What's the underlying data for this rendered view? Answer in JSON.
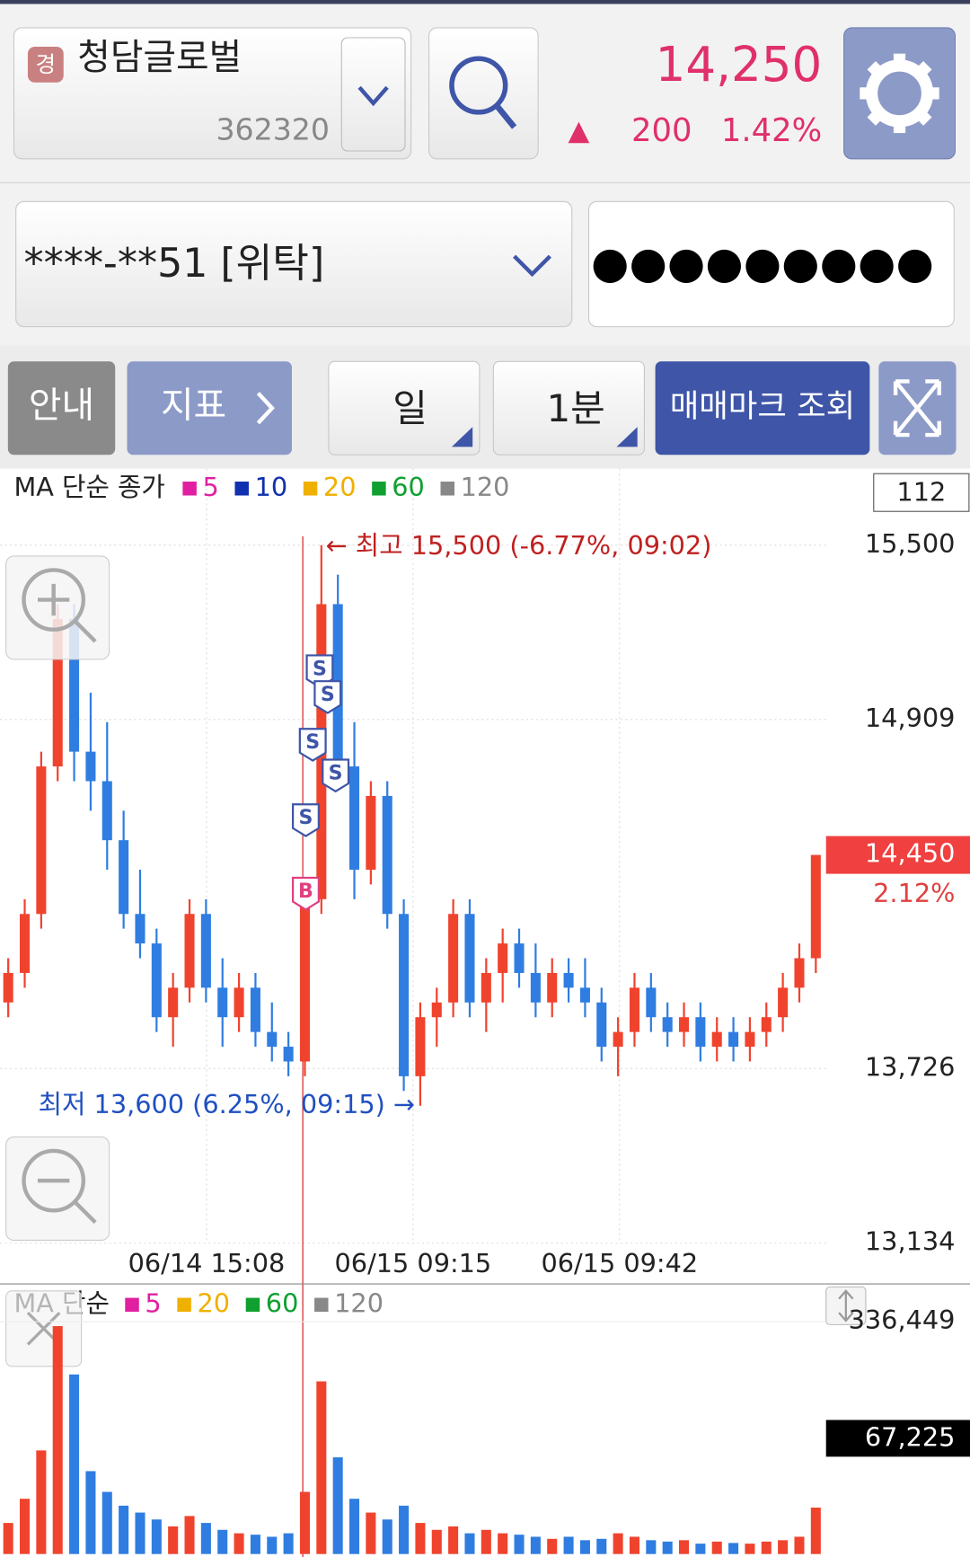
{
  "header": {
    "badge": "경",
    "name": "청담글로벌",
    "code": "362320",
    "price": "14,250",
    "arrow": "▲",
    "change": "200",
    "rate": "1.42%"
  },
  "account": {
    "number": "****-**51 [위탁]",
    "password": "●●●●●●●●●"
  },
  "toolbar": [
    "안내",
    "지표",
    "일",
    "1분",
    "매매마크 조회"
  ],
  "chart": {
    "type": "candlestick",
    "legend_title": "MA 단순 종가",
    "ma": [
      {
        "name": "5",
        "color": "#e020a0"
      },
      {
        "name": "10",
        "color": "#1030b0"
      },
      {
        "name": "20",
        "color": "#f0b000"
      },
      {
        "name": "60",
        "color": "#10a030"
      },
      {
        "name": "120",
        "color": "#888888"
      }
    ],
    "count": "112",
    "ylim": [
      13134,
      15500
    ],
    "yticks": [
      {
        "value": 15500,
        "label": "15,500"
      },
      {
        "value": 14909,
        "label": "14,909"
      },
      {
        "value": 13726,
        "label": "13,726"
      },
      {
        "value": 13134,
        "label": "13,134"
      }
    ],
    "current": {
      "value": 14450,
      "label": "14,450"
    },
    "current_rate": "2.12%",
    "high_note": "← 최고 15,500 (-6.77%, 09:02)",
    "low_note": "최저 13,600 (6.25%, 09:15) →",
    "x_labels": [
      "06/14 15:08",
      "06/15 09:15",
      "06/15 09:42"
    ],
    "trade_marks": [
      "S",
      "S",
      "S",
      "S",
      "S",
      "B"
    ],
    "up_color": "#f0432e",
    "down_color": "#2f7de1",
    "candles": [
      [
        13950,
        14100,
        13900,
        14050
      ],
      [
        14050,
        14300,
        14000,
        14250
      ],
      [
        14250,
        14800,
        14200,
        14750
      ],
      [
        14750,
        15300,
        14700,
        15250
      ],
      [
        15250,
        15300,
        14700,
        14800
      ],
      [
        14800,
        15000,
        14600,
        14700
      ],
      [
        14700,
        14900,
        14400,
        14500
      ],
      [
        14500,
        14600,
        14200,
        14250
      ],
      [
        14250,
        14400,
        14100,
        14150
      ],
      [
        14150,
        14200,
        13850,
        13900
      ],
      [
        13900,
        14050,
        13800,
        14000
      ],
      [
        14000,
        14300,
        13950,
        14250
      ],
      [
        14250,
        14300,
        13950,
        14000
      ],
      [
        14000,
        14100,
        13800,
        13900
      ],
      [
        13900,
        14050,
        13850,
        14000
      ],
      [
        14000,
        14050,
        13800,
        13850
      ],
      [
        13850,
        13950,
        13750,
        13800
      ],
      [
        13800,
        13850,
        13700,
        13750
      ],
      [
        13750,
        14350,
        13700,
        14300
      ],
      [
        14300,
        15500,
        14250,
        15300
      ],
      [
        15300,
        15400,
        14700,
        14750
      ],
      [
        14750,
        14900,
        14300,
        14400
      ],
      [
        14400,
        14700,
        14350,
        14650
      ],
      [
        14650,
        14700,
        14200,
        14250
      ],
      [
        14250,
        14300,
        13650,
        13700
      ],
      [
        13700,
        13950,
        13600,
        13900
      ],
      [
        13900,
        14000,
        13800,
        13950
      ],
      [
        13950,
        14300,
        13900,
        14250
      ],
      [
        14250,
        14300,
        13900,
        13950
      ],
      [
        13950,
        14100,
        13850,
        14050
      ],
      [
        14050,
        14200,
        13950,
        14150
      ],
      [
        14150,
        14200,
        14000,
        14050
      ],
      [
        14050,
        14150,
        13900,
        13950
      ],
      [
        13950,
        14100,
        13900,
        14050
      ],
      [
        14050,
        14100,
        13950,
        14000
      ],
      [
        14000,
        14100,
        13900,
        13950
      ],
      [
        13950,
        14000,
        13750,
        13800
      ],
      [
        13800,
        13900,
        13700,
        13850
      ],
      [
        13850,
        14050,
        13800,
        14000
      ],
      [
        14000,
        14050,
        13850,
        13900
      ],
      [
        13900,
        13950,
        13800,
        13850
      ],
      [
        13850,
        13950,
        13800,
        13900
      ],
      [
        13900,
        13950,
        13750,
        13800
      ],
      [
        13800,
        13900,
        13750,
        13850
      ],
      [
        13850,
        13900,
        13750,
        13800
      ],
      [
        13800,
        13900,
        13750,
        13850
      ],
      [
        13850,
        13950,
        13800,
        13900
      ],
      [
        13900,
        14050,
        13850,
        14000
      ],
      [
        14000,
        14150,
        13950,
        14100
      ],
      [
        14100,
        14450,
        14050,
        14450
      ]
    ]
  },
  "volume": {
    "type": "bar",
    "legend_title": "MA 단순",
    "ma": [
      {
        "name": "5",
        "color": "#e020a0"
      },
      {
        "name": "20",
        "color": "#f0b000"
      },
      {
        "name": "60",
        "color": "#10a030"
      },
      {
        "name": "120",
        "color": "#888888"
      }
    ],
    "ylim": [
      0,
      336449
    ],
    "yticks": [
      {
        "value": 336449,
        "label": "336,449"
      }
    ],
    "current": {
      "value": 67225,
      "label": "67,225"
    },
    "values": [
      45000,
      80000,
      150000,
      330000,
      260000,
      120000,
      90000,
      70000,
      60000,
      50000,
      40000,
      55000,
      45000,
      35000,
      30000,
      28000,
      25000,
      30000,
      90000,
      250000,
      140000,
      80000,
      60000,
      50000,
      70000,
      45000,
      35000,
      40000,
      30000,
      35000,
      30000,
      28000,
      25000,
      22000,
      25000,
      20000,
      22000,
      30000,
      25000,
      20000,
      18000,
      20000,
      15000,
      18000,
      16000,
      15000,
      18000,
      20000,
      25000,
      67225
    ]
  }
}
